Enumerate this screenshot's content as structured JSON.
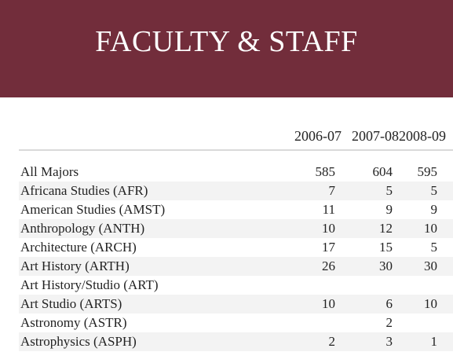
{
  "header": {
    "title": "FACULTY & STAFF",
    "background_color": "#722d3b"
  },
  "table": {
    "columns": [
      "",
      "2006-07",
      "2007-08",
      "2008-09"
    ],
    "rows": [
      {
        "name": "All Majors",
        "v1": "585",
        "v2": "604",
        "v3": "595"
      },
      {
        "name": "Africana Studies (AFR)",
        "v1": "7",
        "v2": "5",
        "v3": "5"
      },
      {
        "name": "American Studies (AMST)",
        "v1": "11",
        "v2": "9",
        "v3": "9"
      },
      {
        "name": "Anthropology (ANTH)",
        "v1": "10",
        "v2": "12",
        "v3": "10"
      },
      {
        "name": "Architecture (ARCH)",
        "v1": "17",
        "v2": "15",
        "v3": "5"
      },
      {
        "name": "Art History (ARTH)",
        "v1": "26",
        "v2": "30",
        "v3": "30"
      },
      {
        "name": "Art History/Studio (ART)",
        "v1": "",
        "v2": "",
        "v3": ""
      },
      {
        "name": "Art Studio (ARTS)",
        "v1": "10",
        "v2": "6",
        "v3": "10"
      },
      {
        "name": "Astronomy (ASTR)",
        "v1": "",
        "v2": "2",
        "v3": ""
      },
      {
        "name": "Astrophysics (ASPH)",
        "v1": "2",
        "v2": "3",
        "v3": "1"
      }
    ]
  }
}
